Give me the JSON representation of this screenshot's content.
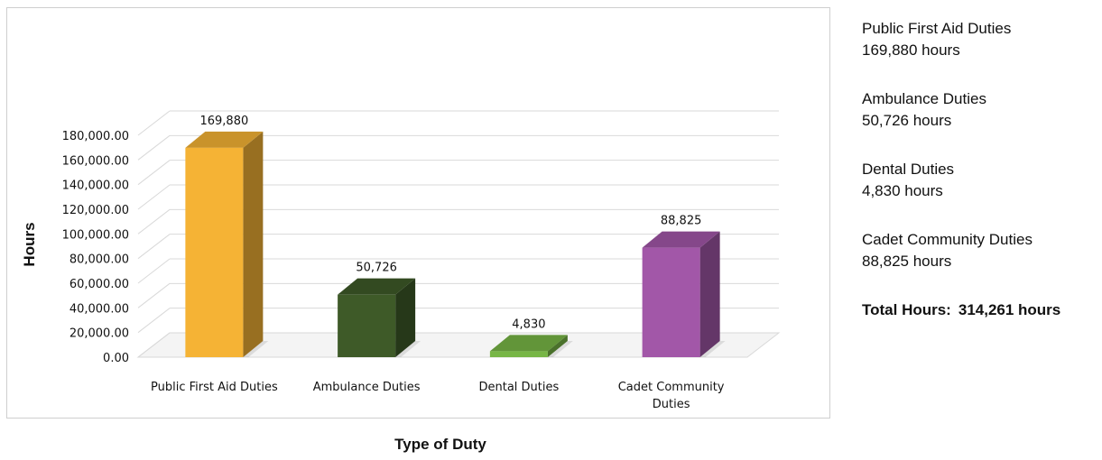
{
  "chart_data": {
    "type": "bar",
    "xlabel": "Type of Duty",
    "ylabel": "Hours",
    "ylim": [
      0,
      180000
    ],
    "yticks": [
      "0.00",
      "20,000.00",
      "40,000.00",
      "60,000.00",
      "80,000.00",
      "100,000.00",
      "120,000.00",
      "140,000.00",
      "160,000.00",
      "180,000.00"
    ],
    "grid": true,
    "categories": [
      "Public First Aid Duties",
      "Ambulance Duties",
      "Dental Duties",
      "Cadet Community Duties"
    ],
    "category_lines": [
      [
        "Public First Aid Duties"
      ],
      [
        "Ambulance Duties"
      ],
      [
        "Dental Duties"
      ],
      [
        "Cadet Community",
        "Duties"
      ]
    ],
    "values": [
      169880,
      50726,
      4830,
      88825
    ],
    "value_labels": [
      "169,880",
      "50,726",
      "4,830",
      "88,825"
    ],
    "colors": [
      "#f5b335",
      "#3e5a28",
      "#77b646",
      "#a257a8"
    ]
  },
  "summary": {
    "items": [
      {
        "name": "Public First Aid Duties",
        "hours": "169,880 hours"
      },
      {
        "name": "Ambulance Duties",
        "hours": "50,726 hours"
      },
      {
        "name": "Dental Duties",
        "hours": "4,830 hours"
      },
      {
        "name": "Cadet Community Duties",
        "hours": "88,825 hours"
      }
    ],
    "total_label": "Total Hours:",
    "total_value": "314,261 hours"
  }
}
